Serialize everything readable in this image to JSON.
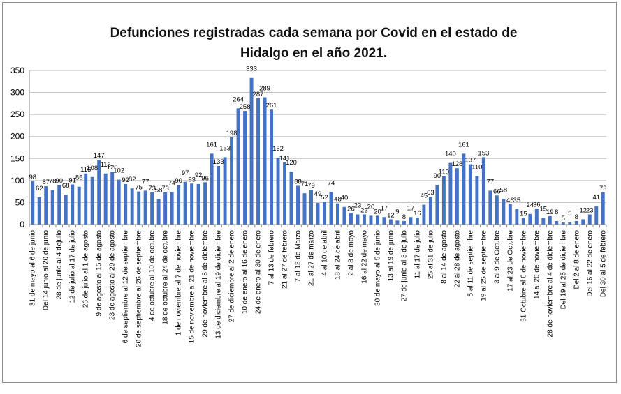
{
  "chart_data": {
    "type": "bar",
    "title_lines": [
      "Defunciones registradas cada semana por Covid en el estado de",
      "Hidalgo en el año 2021."
    ],
    "xlabel": "",
    "ylabel": "",
    "ylim": [
      0,
      350
    ],
    "yticks": [
      0,
      50,
      100,
      150,
      200,
      250,
      300,
      350
    ],
    "grid": "horizontal",
    "legend": "none",
    "color": "#4472C4",
    "values": [
      98,
      62,
      87,
      78,
      90,
      68,
      91,
      86,
      116,
      108,
      147,
      116,
      120,
      102,
      92,
      82,
      75,
      77,
      73,
      58,
      73,
      74,
      90,
      97,
      93,
      92,
      96,
      161,
      133,
      153,
      198,
      264,
      258,
      333,
      287,
      289,
      261,
      152,
      141,
      120,
      88,
      71,
      79,
      49,
      52,
      74,
      48,
      40,
      26,
      23,
      23,
      20,
      20,
      17,
      12,
      9,
      8,
      17,
      16,
      45,
      63,
      90,
      110,
      140,
      128,
      161,
      137,
      110,
      153,
      77,
      66,
      58,
      46,
      35,
      15,
      24,
      36,
      15,
      19,
      8,
      5,
      5,
      8,
      12,
      23,
      41,
      73
    ],
    "tick_labels": [
      "31 de mayo al 6 de junio",
      "Del 14 junio al 20 de junio",
      "28 de junio al 4 dejulio",
      "12 de julio al 17 de julio",
      "26 de julio al 1 de agosto",
      "9 de agosto al 15 de agosto",
      "23 de agosto al 29 de agosto",
      "6 de septiembre al 12 de septiembre",
      "20 de septiembre al 26 de septiembre",
      "4 de octubre al 10 de octubre",
      "18 de octubre al 24 de octubre",
      "1 de noviembre al 7 de noviembre",
      "15 de noviembre al 21 de noviembre",
      "29 de noviembre al 5 de diciembre",
      "13 de diciembre al 19 de diciembre",
      "27 de diciembre al 2 de enero",
      "10 de enero al 16 de enero",
      "24 de enero al 30 de enero",
      "7 al 13 de febrero",
      "21 al 27 de febrero",
      "7 al 13 de Marzo",
      "21 al 27 de marzo",
      "4 al 10 de abril",
      "18 al 24 de abril",
      "2 al 8 de mayo",
      "16 al 22 de mayo",
      "30 de mayo al 5 de junio",
      "13 al 19 de junio",
      "27 de junio al 3 de julio",
      "11 al 17 de julio",
      "25 al 31 de julio",
      "8 al 14 de agosto",
      "22 al 28 de agosto",
      "5 al 11 de septiembre",
      "19 al 25 de septiembre",
      "3 al 9 de Octubre",
      "17 al 23 de Octubre",
      "31 Octubre al 6 de noviembre",
      "14 al 20 de noviembre",
      "28 de noviembre al 4 de diciembre",
      "Del 19 al 25 de diciembre",
      "Del 2 al 8 de enero",
      "Del 16 al 22 de enero",
      "Del 30 al 5 de febrero"
    ],
    "tick_every": 2
  }
}
